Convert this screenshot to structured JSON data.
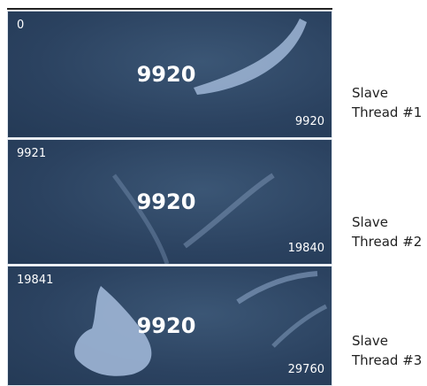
{
  "panels": [
    {
      "start": "0",
      "size": "9920",
      "end": "9920",
      "label": "Slave Thread #1"
    },
    {
      "start": "9921",
      "size": "9920",
      "end": "19840",
      "label": "Slave Thread #2"
    },
    {
      "start": "19841",
      "size": "9920",
      "end": "29760",
      "label": "Slave Thread #3"
    }
  ]
}
